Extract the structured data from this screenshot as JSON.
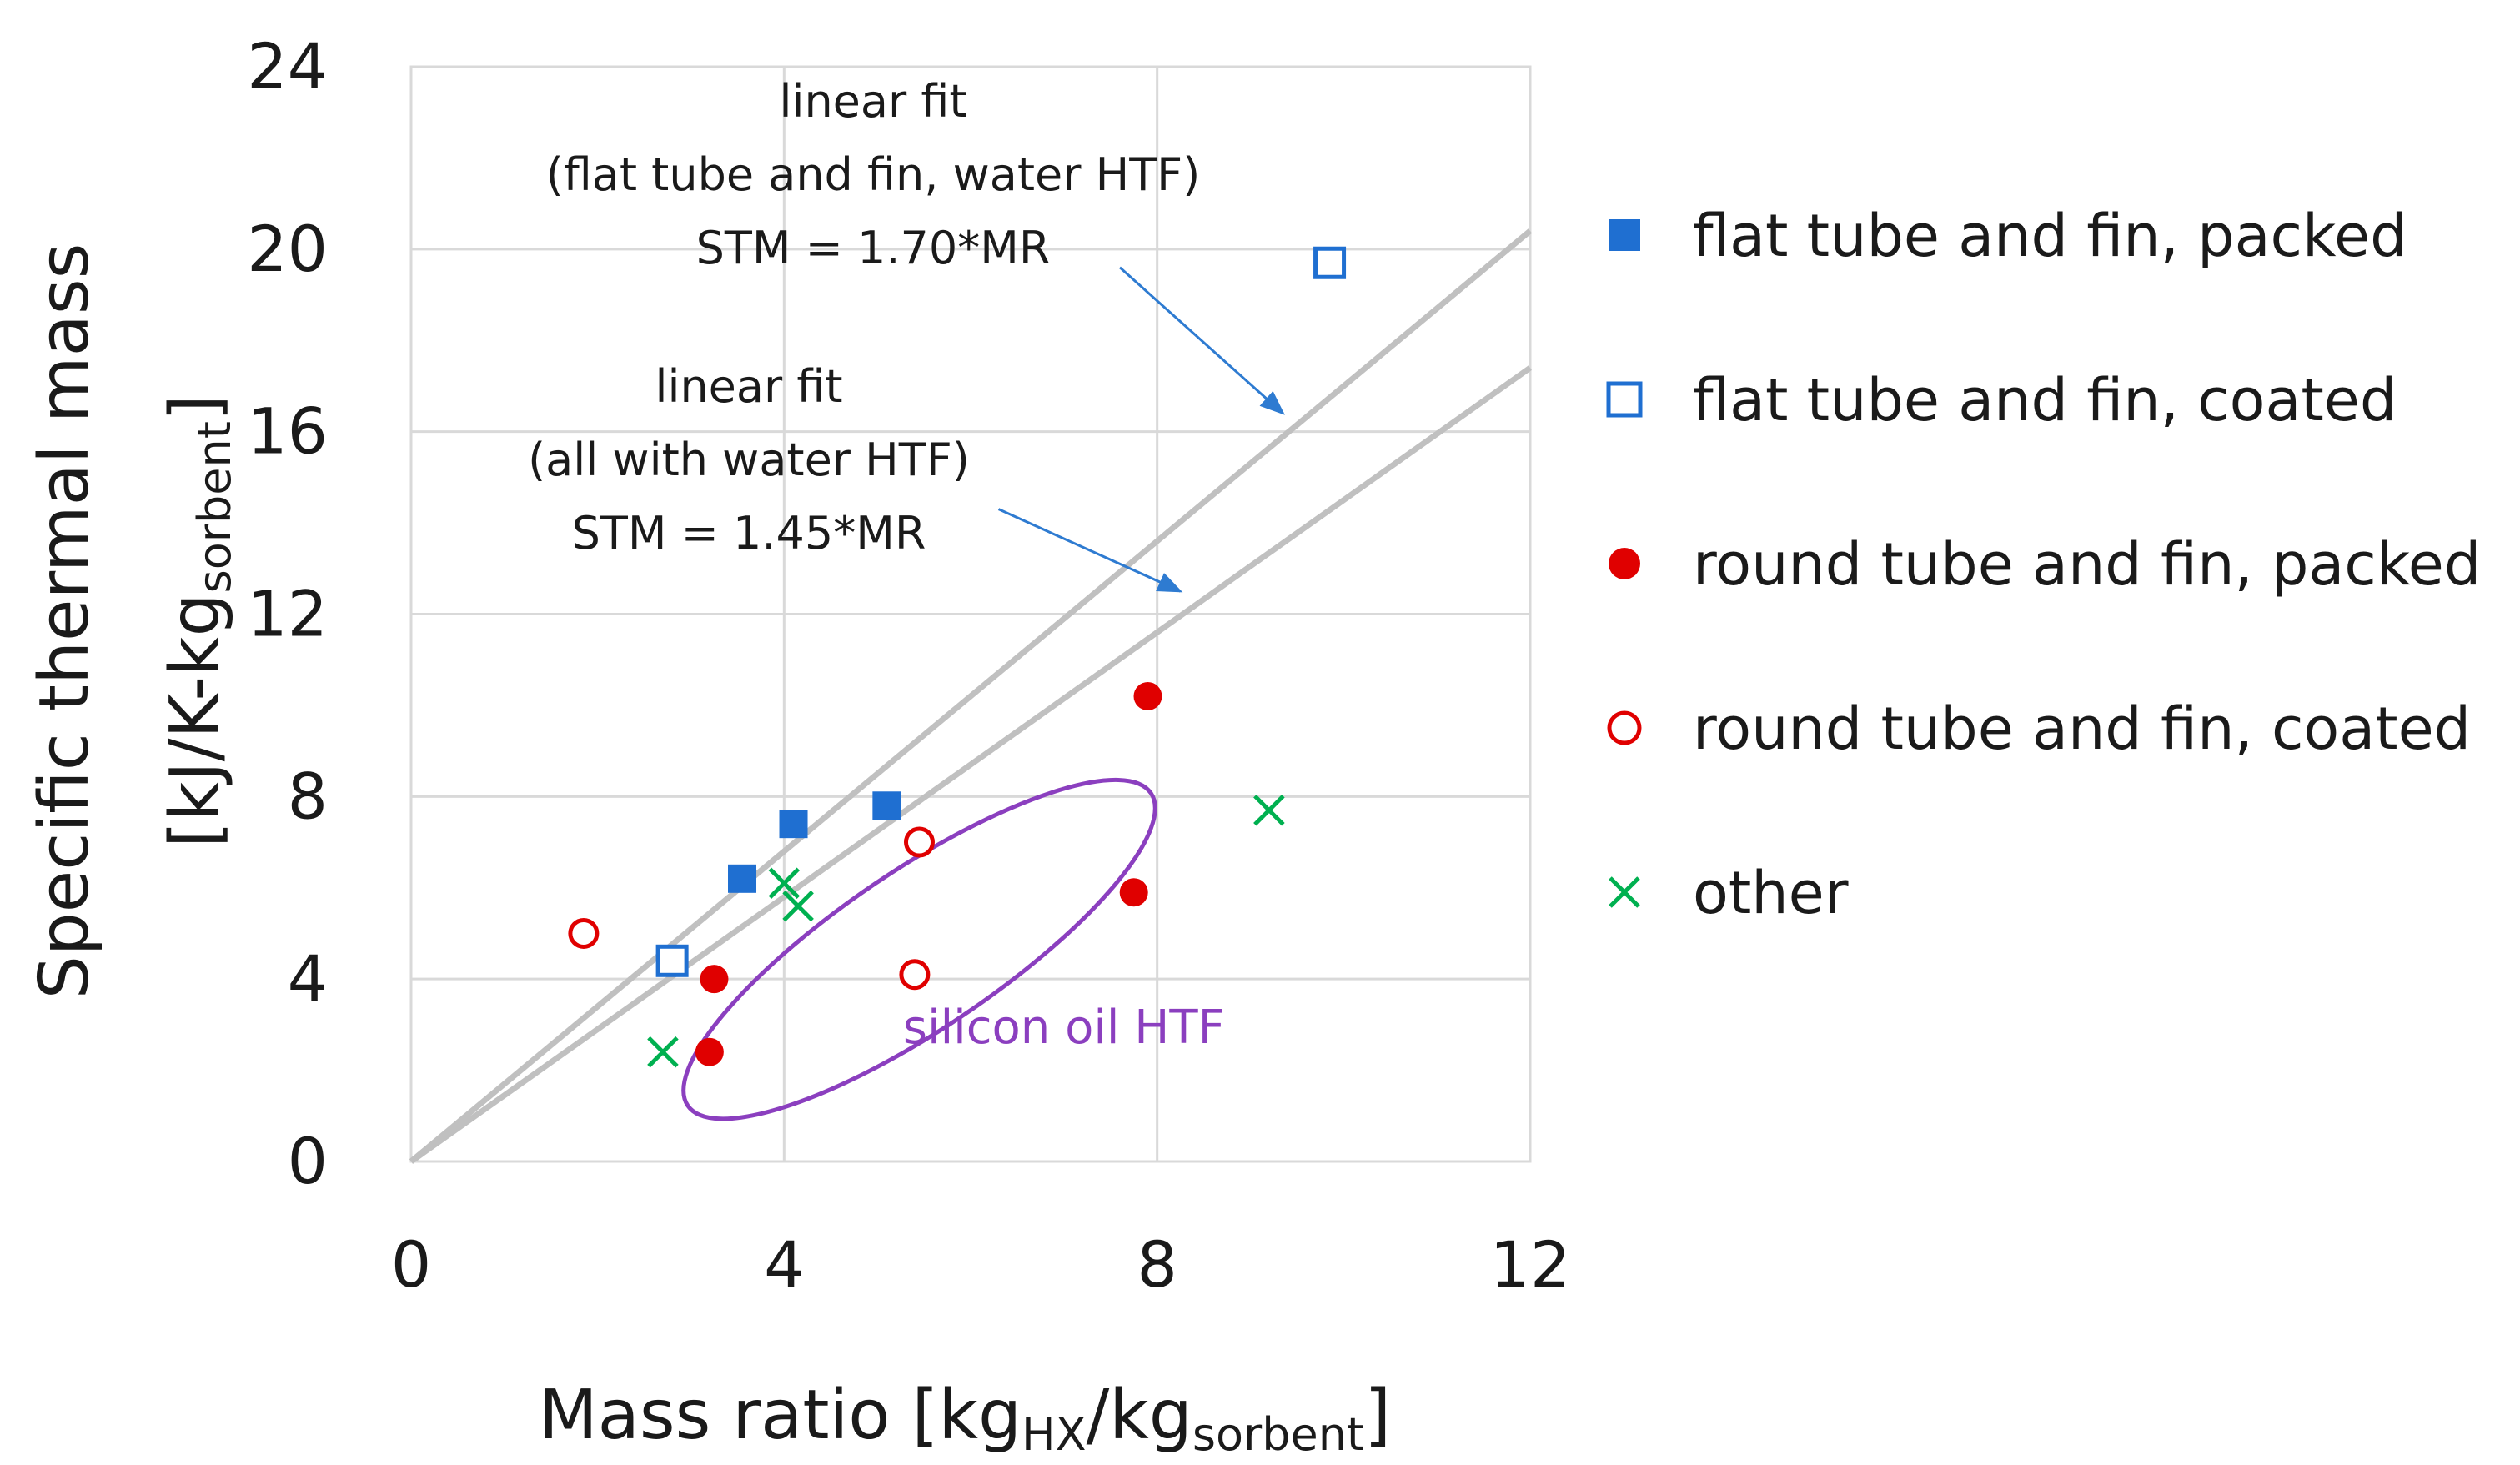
{
  "chart_data": {
    "type": "scatter",
    "xlabel": {
      "main": "Mass ratio [kg",
      "sub1": "HX",
      "mid": "/kg",
      "sub2": "sorbent",
      "end": "]"
    },
    "ylabel": {
      "line1": "Specific thermal mass",
      "line2_main": "[kJ/K-kg",
      "line2_sub": "sorbent",
      "line2_end": "]"
    },
    "xlim": [
      0,
      12
    ],
    "ylim": [
      0,
      24
    ],
    "xticks": [
      0,
      4,
      8,
      12
    ],
    "yticks": [
      0,
      4,
      8,
      12,
      16,
      20,
      24
    ],
    "grid": true,
    "legend_position": "right",
    "series": [
      {
        "name": "flat tube and fin, packed",
        "marker": "filled-square",
        "color": "#1f6fd1",
        "points": [
          [
            3.55,
            6.2
          ],
          [
            4.1,
            7.4
          ],
          [
            5.1,
            7.8
          ]
        ]
      },
      {
        "name": "flat tube and fin, coated",
        "marker": "open-square",
        "color": "#1f6fd1",
        "points": [
          [
            2.8,
            4.4
          ],
          [
            9.85,
            19.7
          ]
        ]
      },
      {
        "name": "round tube and fin, packed",
        "marker": "filled-circle",
        "color": "#e00000",
        "points": [
          [
            3.25,
            4.0
          ],
          [
            3.2,
            2.4
          ],
          [
            7.75,
            5.9
          ],
          [
            7.9,
            10.2
          ]
        ]
      },
      {
        "name": "round tube and fin, coated",
        "marker": "open-circle",
        "color": "#e00000",
        "points": [
          [
            1.85,
            5.0
          ],
          [
            5.45,
            7.0
          ],
          [
            5.4,
            4.1
          ]
        ]
      },
      {
        "name": "other",
        "marker": "x",
        "color": "#00b050",
        "points": [
          [
            2.7,
            2.4
          ],
          [
            4.0,
            6.1
          ],
          [
            4.15,
            5.6
          ],
          [
            9.2,
            7.7
          ]
        ]
      }
    ],
    "fit_lines": [
      {
        "slope": 1.7,
        "x_range": [
          0,
          12
        ],
        "color": "#c0c0c0"
      },
      {
        "slope": 1.45,
        "x_range": [
          0,
          12
        ],
        "color": "#c0c0c0"
      }
    ],
    "annotations": [
      {
        "lines": [
          "linear fit",
          "(flat tube and fin, water HTF)",
          "STM = 1.70*MR"
        ],
        "arrow_from": [
          7.6,
          19.6
        ],
        "arrow_to": [
          9.35,
          16.4
        ]
      },
      {
        "lines": [
          "linear fit",
          "(all with water HTF)",
          "STM = 1.45*MR"
        ],
        "arrow_from": [
          6.3,
          14.3
        ],
        "arrow_to": [
          8.25,
          12.5
        ]
      }
    ],
    "highlight": {
      "label": "silicon oil HTF",
      "color": "#8b3fbf",
      "center": [
        5.45,
        4.65
      ],
      "semi_axes": [
        2.75,
        1.05
      ],
      "angle_deg": 34
    }
  }
}
